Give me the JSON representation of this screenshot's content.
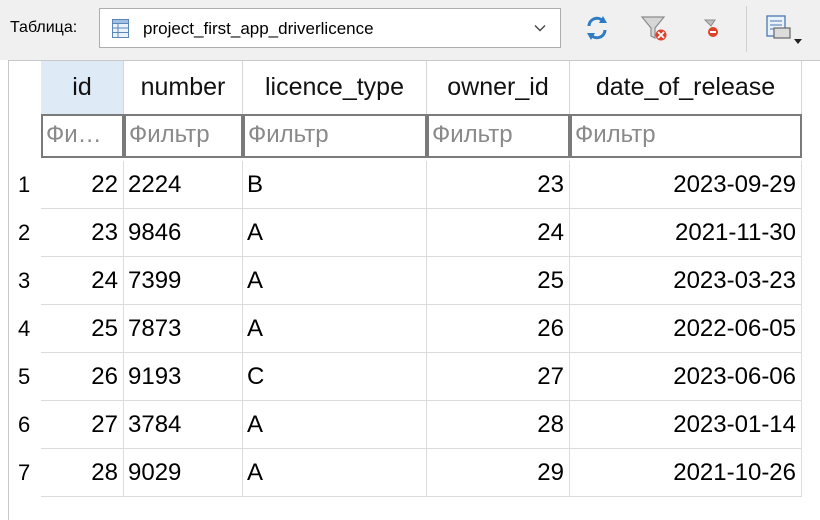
{
  "toolbar": {
    "table_label": "Таблица:",
    "selected_table": "project_first_app_driverlicence",
    "buttons": [
      {
        "name": "refresh-icon"
      },
      {
        "name": "clear-filters-icon"
      },
      {
        "name": "delete-filter-icon"
      },
      {
        "name": "print-icon"
      }
    ]
  },
  "grid": {
    "columns": [
      "id",
      "number",
      "licence_type",
      "owner_id",
      "date_of_release"
    ],
    "filters": {
      "placeholder": "Фильтр",
      "id_truncated": "Фи…"
    },
    "rows": [
      {
        "row": "1",
        "id": "22",
        "number": "2224",
        "licence_type": "B",
        "owner_id": "23",
        "date_of_release": "2023-09-29"
      },
      {
        "row": "2",
        "id": "23",
        "number": "9846",
        "licence_type": "A",
        "owner_id": "24",
        "date_of_release": "2021-11-30"
      },
      {
        "row": "3",
        "id": "24",
        "number": "7399",
        "licence_type": "A",
        "owner_id": "25",
        "date_of_release": "2023-03-23"
      },
      {
        "row": "4",
        "id": "25",
        "number": "7873",
        "licence_type": "A",
        "owner_id": "26",
        "date_of_release": "2022-06-05"
      },
      {
        "row": "5",
        "id": "26",
        "number": "9193",
        "licence_type": "C",
        "owner_id": "27",
        "date_of_release": "2023-06-06"
      },
      {
        "row": "6",
        "id": "27",
        "number": "3784",
        "licence_type": "A",
        "owner_id": "28",
        "date_of_release": "2023-01-14"
      },
      {
        "row": "7",
        "id": "28",
        "number": "9029",
        "licence_type": "A",
        "owner_id": "29",
        "date_of_release": "2021-10-26"
      }
    ]
  }
}
